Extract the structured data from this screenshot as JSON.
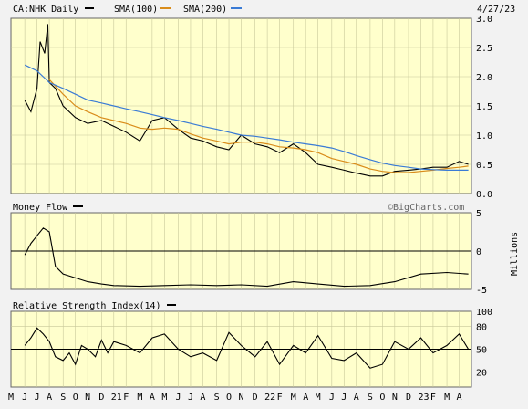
{
  "chart_data": [
    {
      "type": "line",
      "panel": "price",
      "title": "CA:NHK Daily",
      "date": "4/27/23",
      "ylim": [
        0,
        3.0
      ],
      "ytick_labels": [
        "0.0",
        "0.5",
        "1.0",
        "1.5",
        "2.0",
        "2.5",
        "3.0"
      ],
      "grid": true,
      "legend": "top-left",
      "series": [
        {
          "name": "CA:NHK Daily",
          "color": "#000000",
          "x": [
            2020.42,
            2020.46,
            2020.5,
            2020.52,
            2020.55,
            2020.57,
            2020.58,
            2020.62,
            2020.67,
            2020.75,
            2020.83,
            2020.92,
            2021.0,
            2021.08,
            2021.17,
            2021.25,
            2021.33,
            2021.42,
            2021.5,
            2021.58,
            2021.67,
            2021.75,
            2021.83,
            2021.92,
            2022.0,
            2022.08,
            2022.17,
            2022.25,
            2022.33,
            2022.42,
            2022.5,
            2022.58,
            2022.67,
            2022.75,
            2022.83,
            2022.92,
            2023.0,
            2023.08,
            2023.17,
            2023.25,
            2023.31
          ],
          "values": [
            1.6,
            1.4,
            1.8,
            2.6,
            2.4,
            2.9,
            1.9,
            1.8,
            1.5,
            1.3,
            1.2,
            1.25,
            1.15,
            1.05,
            0.9,
            1.25,
            1.3,
            1.1,
            0.95,
            0.9,
            0.8,
            0.75,
            1.0,
            0.85,
            0.8,
            0.7,
            0.85,
            0.7,
            0.5,
            0.45,
            0.4,
            0.35,
            0.3,
            0.3,
            0.38,
            0.4,
            0.42,
            0.45,
            0.45,
            0.55,
            0.5
          ]
        },
        {
          "name": "SMA(100)",
          "color": "#d98c1a",
          "x": [
            2020.58,
            2020.67,
            2020.75,
            2020.83,
            2020.92,
            2021.0,
            2021.08,
            2021.17,
            2021.25,
            2021.33,
            2021.42,
            2021.5,
            2021.58,
            2021.67,
            2021.75,
            2021.83,
            2021.92,
            2022.0,
            2022.08,
            2022.17,
            2022.25,
            2022.33,
            2022.42,
            2022.5,
            2022.58,
            2022.67,
            2022.75,
            2022.83,
            2022.92,
            2023.0,
            2023.08,
            2023.17,
            2023.25,
            2023.31
          ],
          "values": [
            1.95,
            1.7,
            1.5,
            1.4,
            1.3,
            1.25,
            1.2,
            1.12,
            1.1,
            1.12,
            1.1,
            1.02,
            0.95,
            0.9,
            0.85,
            0.88,
            0.88,
            0.85,
            0.8,
            0.78,
            0.75,
            0.7,
            0.6,
            0.55,
            0.5,
            0.42,
            0.38,
            0.36,
            0.36,
            0.38,
            0.4,
            0.43,
            0.45,
            0.47
          ]
        },
        {
          "name": "SMA(200)",
          "color": "#3a7bd5",
          "x": [
            2020.42,
            2020.5,
            2020.58,
            2020.67,
            2020.75,
            2020.83,
            2020.92,
            2021.0,
            2021.08,
            2021.17,
            2021.25,
            2021.33,
            2021.42,
            2021.5,
            2021.58,
            2021.67,
            2021.75,
            2021.83,
            2021.92,
            2022.0,
            2022.08,
            2022.17,
            2022.25,
            2022.33,
            2022.42,
            2022.5,
            2022.58,
            2022.67,
            2022.75,
            2022.83,
            2022.92,
            2023.0,
            2023.08,
            2023.17,
            2023.25,
            2023.31
          ],
          "values": [
            2.2,
            2.1,
            1.9,
            1.8,
            1.7,
            1.6,
            1.55,
            1.5,
            1.45,
            1.4,
            1.35,
            1.3,
            1.25,
            1.2,
            1.15,
            1.1,
            1.05,
            1.0,
            0.98,
            0.95,
            0.92,
            0.88,
            0.85,
            0.82,
            0.78,
            0.72,
            0.65,
            0.58,
            0.52,
            0.48,
            0.45,
            0.42,
            0.41,
            0.4,
            0.4,
            0.4
          ]
        }
      ]
    },
    {
      "type": "line",
      "panel": "money-flow",
      "title": "Money Flow",
      "watermark": "©BigCharts.com",
      "ylabel": "Millions",
      "ylim": [
        -5,
        5
      ],
      "ytick_labels": [
        "5",
        "0",
        "-5"
      ],
      "reference_line": 0,
      "grid": true,
      "series": [
        {
          "name": "Money Flow",
          "color": "#000000",
          "x": [
            2020.42,
            2020.46,
            2020.5,
            2020.54,
            2020.58,
            2020.62,
            2020.67,
            2020.75,
            2020.83,
            2020.92,
            2021.0,
            2021.17,
            2021.33,
            2021.5,
            2021.67,
            2021.83,
            2022.0,
            2022.17,
            2022.33,
            2022.5,
            2022.67,
            2022.83,
            2023.0,
            2023.17,
            2023.31
          ],
          "values": [
            -0.5,
            1.0,
            2.0,
            3.0,
            2.5,
            -2.0,
            -3.0,
            -3.5,
            -4.0,
            -4.3,
            -4.5,
            -4.6,
            -4.5,
            -4.4,
            -4.5,
            -4.4,
            -4.6,
            -4.0,
            -4.3,
            -4.6,
            -4.5,
            -4.0,
            -3.0,
            -2.8,
            -3.0
          ]
        }
      ]
    },
    {
      "type": "line",
      "panel": "rsi",
      "title": "Relative Strength Index(14)",
      "ylim": [
        0,
        100
      ],
      "ytick_labels": [
        "100",
        "80",
        "50",
        "20"
      ],
      "reference_line": 50,
      "grid": true,
      "series": [
        {
          "name": "Relative Strength Index(14)",
          "color": "#000000",
          "x": [
            2020.42,
            2020.46,
            2020.5,
            2020.54,
            2020.58,
            2020.62,
            2020.67,
            2020.71,
            2020.75,
            2020.79,
            2020.83,
            2020.88,
            2020.92,
            2020.96,
            2021.0,
            2021.08,
            2021.17,
            2021.25,
            2021.33,
            2021.42,
            2021.5,
            2021.58,
            2021.67,
            2021.75,
            2021.83,
            2021.92,
            2022.0,
            2022.08,
            2022.17,
            2022.25,
            2022.33,
            2022.42,
            2022.5,
            2022.58,
            2022.67,
            2022.75,
            2022.83,
            2022.92,
            2023.0,
            2023.08,
            2023.17,
            2023.25,
            2023.31
          ],
          "values": [
            55,
            65,
            78,
            70,
            60,
            40,
            35,
            45,
            30,
            55,
            50,
            40,
            62,
            45,
            60,
            55,
            45,
            65,
            70,
            50,
            40,
            45,
            35,
            72,
            55,
            40,
            60,
            30,
            55,
            45,
            68,
            38,
            35,
            45,
            25,
            30,
            60,
            50,
            65,
            45,
            55,
            70,
            50
          ]
        }
      ]
    },
    {
      "type": "axis",
      "panel": "time-axis",
      "x_tick_labels": [
        "M",
        "J",
        "J",
        "A",
        "S",
        "O",
        "N",
        "D",
        "21",
        "F",
        "M",
        "A",
        "M",
        "J",
        "J",
        "A",
        "S",
        "O",
        "N",
        "D",
        "22",
        "F",
        "M",
        "A",
        "M",
        "J",
        "J",
        "A",
        "S",
        "O",
        "N",
        "D",
        "23",
        "F",
        "M",
        "A"
      ],
      "x_tick_values": [
        2020.33,
        2020.42,
        2020.5,
        2020.58,
        2020.67,
        2020.75,
        2020.83,
        2020.92,
        2021.0,
        2021.08,
        2021.17,
        2021.25,
        2021.33,
        2021.42,
        2021.5,
        2021.58,
        2021.67,
        2021.75,
        2021.83,
        2021.92,
        2022.0,
        2022.08,
        2022.17,
        2022.25,
        2022.33,
        2022.42,
        2022.5,
        2022.58,
        2022.67,
        2022.75,
        2022.83,
        2022.92,
        2023.0,
        2023.08,
        2023.17,
        2023.25
      ]
    }
  ],
  "colors": {
    "background": "#f2f2f2",
    "plot": "#ffffcc",
    "grid": "#c8c89a",
    "border": "#666666",
    "price": "#000000",
    "sma100": "#d98c1a",
    "sma200": "#3a7bd5"
  }
}
